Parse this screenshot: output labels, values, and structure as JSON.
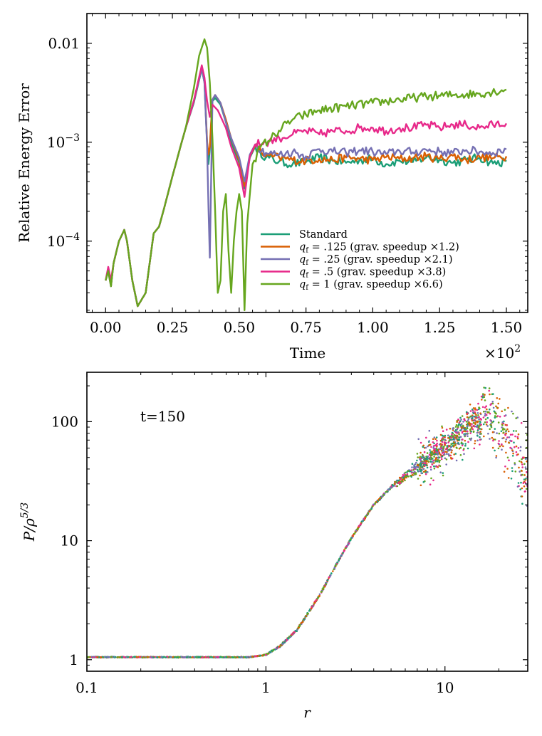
{
  "chart_data": [
    {
      "type": "line",
      "xlabel": "Time",
      "ylabel": "Relative Energy Error",
      "x_multiplier_label": "×10",
      "x_multiplier_exp": "2",
      "xlim": [
        -0.07,
        1.58
      ],
      "ylim": [
        1.9e-05,
        0.02
      ],
      "yscale": "log",
      "x_ticks": [
        0.0,
        0.25,
        0.5,
        0.75,
        1.0,
        1.25,
        1.5
      ],
      "x_tick_labels": [
        "0.00",
        "0.25",
        "0.50",
        "0.75",
        "1.00",
        "1.25",
        "1.50"
      ],
      "y_ticks": [
        0.0001,
        0.001,
        0.01
      ],
      "y_tick_labels": [
        {
          "base": "10",
          "exp": "−4"
        },
        {
          "base": "10",
          "exp": "−3"
        },
        {
          "base": "0.01",
          "exp": ""
        }
      ],
      "legend_position": "lower-right",
      "series": [
        {
          "name": "Standard",
          "label_main": "Standard",
          "label_sub": "",
          "label_rest": "",
          "color": "#1b9e77",
          "x": [
            0.0,
            0.01,
            0.02,
            0.03,
            0.05,
            0.07,
            0.08,
            0.1,
            0.12,
            0.15,
            0.18,
            0.2,
            0.22,
            0.25,
            0.28,
            0.3,
            0.33,
            0.36,
            0.37,
            0.38,
            0.385,
            0.39,
            0.4,
            0.41,
            0.43,
            0.45,
            0.47,
            0.5,
            0.52,
            0.54,
            0.56,
            0.6,
            0.65,
            0.7,
            0.75,
            0.8,
            0.85,
            0.9,
            0.95,
            1.0,
            1.05,
            1.1,
            1.15,
            1.2,
            1.25,
            1.3,
            1.35,
            1.4,
            1.45,
            1.5
          ],
          "y": [
            4e-05,
            5e-05,
            3.5e-05,
            6e-05,
            0.0001,
            0.00013,
            0.0001,
            4e-05,
            2.2e-05,
            3e-05,
            0.00012,
            0.00014,
            0.00022,
            0.00045,
            0.0009,
            0.0014,
            0.0025,
            0.0055,
            0.004,
            0.00095,
            0.0006,
            0.00085,
            0.0026,
            0.0028,
            0.0024,
            0.0016,
            0.001,
            0.00062,
            0.00034,
            0.0007,
            0.0009,
            0.0007,
            0.00064,
            0.0006,
            0.00063,
            0.0007,
            0.00065,
            0.00062,
            0.00066,
            0.00068,
            0.0006,
            0.00065,
            0.00063,
            0.0007,
            0.00067,
            0.00062,
            0.00066,
            0.0007,
            0.00061,
            0.00064
          ]
        },
        {
          "name": "qf = .125 (grav. speedup ×1.2)",
          "label_main": "q",
          "label_sub": "f",
          "label_rest": " = .125 (grav. speedup ×1.2)",
          "color": "#d95f02",
          "x": [
            0.0,
            0.01,
            0.02,
            0.03,
            0.05,
            0.07,
            0.08,
            0.1,
            0.12,
            0.15,
            0.18,
            0.2,
            0.22,
            0.25,
            0.28,
            0.3,
            0.33,
            0.36,
            0.37,
            0.38,
            0.385,
            0.39,
            0.4,
            0.41,
            0.43,
            0.45,
            0.47,
            0.5,
            0.52,
            0.54,
            0.56,
            0.6,
            0.65,
            0.7,
            0.75,
            0.8,
            0.85,
            0.9,
            0.95,
            1.0,
            1.05,
            1.1,
            1.15,
            1.2,
            1.25,
            1.3,
            1.35,
            1.4,
            1.45,
            1.5
          ],
          "y": [
            4e-05,
            5e-05,
            3.5e-05,
            6e-05,
            0.0001,
            0.00013,
            0.0001,
            4e-05,
            2.2e-05,
            3e-05,
            0.00012,
            0.00014,
            0.00022,
            0.00045,
            0.0009,
            0.0014,
            0.0026,
            0.0058,
            0.0042,
            0.001,
            0.00075,
            0.0009,
            0.0027,
            0.003,
            0.0025,
            0.0017,
            0.0011,
            0.00065,
            0.00036,
            0.00072,
            0.00092,
            0.00072,
            0.0007,
            0.00066,
            0.00065,
            0.00068,
            0.00066,
            0.0007,
            0.00068,
            0.00066,
            0.00071,
            0.00068,
            0.00069,
            0.00072,
            0.00068,
            0.00073,
            0.00066,
            0.00071,
            0.00069,
            0.00072
          ]
        },
        {
          "name": "qf = .25 (grav. speedup ×2.1)",
          "label_main": "q",
          "label_sub": "f",
          "label_rest": " = .25 (grav. speedup ×2.1)",
          "color": "#7570b3",
          "x": [
            0.0,
            0.01,
            0.02,
            0.03,
            0.05,
            0.07,
            0.08,
            0.1,
            0.12,
            0.15,
            0.18,
            0.2,
            0.22,
            0.25,
            0.28,
            0.3,
            0.33,
            0.36,
            0.37,
            0.38,
            0.385,
            0.39,
            0.395,
            0.4,
            0.41,
            0.43,
            0.45,
            0.47,
            0.5,
            0.52,
            0.54,
            0.56,
            0.6,
            0.65,
            0.7,
            0.75,
            0.8,
            0.85,
            0.9,
            0.95,
            1.0,
            1.05,
            1.1,
            1.15,
            1.2,
            1.25,
            1.3,
            1.35,
            1.4,
            1.45,
            1.5
          ],
          "y": [
            4e-05,
            5e-05,
            3.5e-05,
            6e-05,
            0.0001,
            0.00013,
            0.0001,
            4e-05,
            2.2e-05,
            3e-05,
            0.00012,
            0.00014,
            0.00022,
            0.00045,
            0.0009,
            0.0014,
            0.0026,
            0.0056,
            0.004,
            0.0009,
            0.00022,
            6.8e-05,
            0.0004,
            0.0027,
            0.003,
            0.0025,
            0.0016,
            0.0011,
            0.0007,
            0.0004,
            0.00075,
            0.00095,
            0.00078,
            0.00075,
            0.0008,
            0.00072,
            0.00085,
            0.0008,
            0.00078,
            0.00083,
            0.0008,
            0.00076,
            0.00082,
            0.00079,
            0.00084,
            0.0008,
            0.00078,
            0.00083,
            0.0008,
            0.00078,
            0.00085
          ]
        },
        {
          "name": "qf = .5 (grav. speedup ×3.8)",
          "label_main": "q",
          "label_sub": "f",
          "label_rest": " = .5 (grav. speedup ×3.8)",
          "color": "#e7298a",
          "x": [
            0.0,
            0.01,
            0.02,
            0.03,
            0.05,
            0.07,
            0.08,
            0.1,
            0.12,
            0.15,
            0.18,
            0.2,
            0.22,
            0.25,
            0.28,
            0.3,
            0.33,
            0.36,
            0.37,
            0.38,
            0.39,
            0.4,
            0.42,
            0.45,
            0.47,
            0.5,
            0.52,
            0.54,
            0.56,
            0.6,
            0.65,
            0.7,
            0.75,
            0.8,
            0.85,
            0.9,
            0.95,
            1.0,
            1.05,
            1.1,
            1.15,
            1.2,
            1.25,
            1.3,
            1.35,
            1.4,
            1.45,
            1.5
          ],
          "y": [
            4e-05,
            5.5e-05,
            4e-05,
            6e-05,
            0.0001,
            0.00013,
            0.0001,
            4e-05,
            2.2e-05,
            3e-05,
            0.00012,
            0.00014,
            0.00022,
            0.00045,
            0.0009,
            0.0014,
            0.0026,
            0.006,
            0.0045,
            0.0026,
            0.0018,
            0.0024,
            0.0021,
            0.0014,
            0.0009,
            0.00055,
            0.00028,
            0.00072,
            0.00095,
            0.001,
            0.0011,
            0.0012,
            0.0013,
            0.0012,
            0.0013,
            0.0013,
            0.0014,
            0.0014,
            0.0013,
            0.0014,
            0.0014,
            0.0015,
            0.0014,
            0.0015,
            0.0015,
            0.0014,
            0.0015,
            0.00155
          ]
        },
        {
          "name": "qf = 1 (grav. speedup ×6.6)",
          "label_main": "q",
          "label_sub": "f",
          "label_rest": " = 1 (grav. speedup ×6.6)",
          "color": "#66a61e",
          "x": [
            0.0,
            0.01,
            0.02,
            0.03,
            0.05,
            0.07,
            0.08,
            0.1,
            0.12,
            0.15,
            0.18,
            0.2,
            0.22,
            0.25,
            0.28,
            0.3,
            0.33,
            0.35,
            0.37,
            0.38,
            0.39,
            0.4,
            0.41,
            0.42,
            0.43,
            0.44,
            0.45,
            0.46,
            0.47,
            0.48,
            0.49,
            0.5,
            0.51,
            0.52,
            0.53,
            0.55,
            0.58,
            0.62,
            0.66,
            0.7,
            0.75,
            0.8,
            0.9,
            1.0,
            1.1,
            1.2,
            1.3,
            1.4,
            1.5
          ],
          "y": [
            4e-05,
            5e-05,
            3.5e-05,
            6e-05,
            0.0001,
            0.00013,
            0.0001,
            4e-05,
            2.2e-05,
            3e-05,
            0.00012,
            0.00014,
            0.00022,
            0.00045,
            0.0009,
            0.0014,
            0.0035,
            0.0075,
            0.011,
            0.009,
            0.004,
            0.0011,
            0.0002,
            3e-05,
            4e-05,
            0.0002,
            0.0003,
            8e-05,
            3e-05,
            0.0001,
            0.0002,
            0.0003,
            0.0002,
            2e-05,
            0.00015,
            0.0006,
            0.0009,
            0.0011,
            0.0014,
            0.0017,
            0.0019,
            0.0021,
            0.0023,
            0.0025,
            0.0027,
            0.0029,
            0.003,
            0.0031,
            0.0034
          ]
        }
      ]
    },
    {
      "type": "scatter",
      "xlabel": "r",
      "ylabel_main": "P/ρ",
      "ylabel_exp": "5/3",
      "annotation": "t=150",
      "xscale": "log",
      "yscale": "log",
      "xlim": [
        0.1,
        29
      ],
      "ylim": [
        0.8,
        260
      ],
      "x_ticks": [
        0.1,
        1,
        10
      ],
      "x_tick_labels": [
        "0.1",
        "1",
        "10"
      ],
      "y_ticks": [
        1,
        10,
        100
      ],
      "y_tick_labels": [
        "1",
        "10",
        "100"
      ],
      "profile": {
        "r": [
          0.1,
          0.3,
          0.8,
          1.0,
          1.2,
          1.5,
          2.0,
          2.5,
          3.0,
          4.0,
          5.0,
          6.0,
          8.0,
          10.0,
          12.0,
          14.0
        ],
        "y": [
          1.05,
          1.05,
          1.05,
          1.1,
          1.3,
          1.8,
          3.5,
          6.5,
          10.5,
          20.0,
          28.0,
          35.0,
          48.0,
          60.0,
          75.0,
          95.0
        ]
      },
      "series_colors": [
        "#1b9e77",
        "#d95f02",
        "#7570b3",
        "#e7298a",
        "#66a61e"
      ]
    }
  ]
}
